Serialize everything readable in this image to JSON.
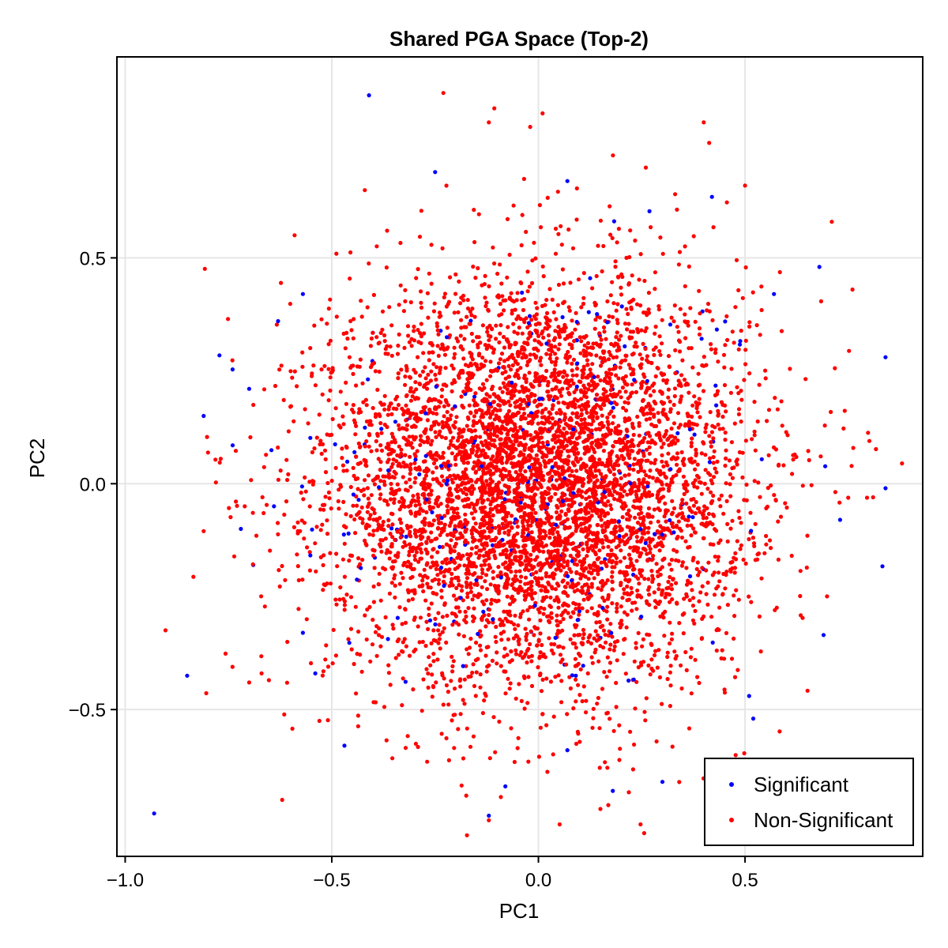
{
  "chart_data": {
    "type": "scatter",
    "title": "Shared PGA Space (Top-2)",
    "xlabel": "PC1",
    "ylabel": "PC2",
    "xlim": [
      -1.02,
      0.93
    ],
    "ylim": [
      -0.825,
      0.945
    ],
    "xticks": [
      -1.0,
      -0.5,
      0.0,
      0.5
    ],
    "xtick_labels": [
      "−1.0",
      "−0.5",
      "0.0",
      "0.5"
    ],
    "yticks": [
      -0.5,
      0.0,
      0.5
    ],
    "ytick_labels": [
      "−0.5",
      "0.0",
      "0.5"
    ],
    "grid": true,
    "legend_position": "bottom-right",
    "series": [
      {
        "name": "Significant",
        "color": "#0000ff",
        "count": 260,
        "distribution": {
          "center": [
            0.0,
            0.0
          ],
          "sd": [
            0.3,
            0.25
          ]
        },
        "points": [
          [
            -0.93,
            -0.73
          ],
          [
            -0.85,
            -0.425
          ],
          [
            -0.81,
            0.15
          ],
          [
            -0.74,
            0.085
          ],
          [
            -0.72,
            -0.1
          ],
          [
            -0.7,
            0.21
          ],
          [
            -0.69,
            -0.18
          ],
          [
            -0.63,
            0.36
          ],
          [
            -0.64,
            -0.05
          ],
          [
            -0.57,
            0.42
          ],
          [
            -0.57,
            -0.33
          ],
          [
            -0.54,
            -0.42
          ],
          [
            -0.41,
            0.86
          ],
          [
            -0.25,
            0.69
          ],
          [
            0.42,
            0.635
          ],
          [
            0.84,
            0.28
          ],
          [
            0.84,
            -0.01
          ],
          [
            0.73,
            -0.08
          ],
          [
            0.69,
            -0.335
          ],
          [
            0.51,
            -0.47
          ],
          [
            0.52,
            -0.52
          ],
          [
            0.3,
            -0.66
          ],
          [
            0.18,
            -0.68
          ],
          [
            -0.12,
            -0.735
          ],
          [
            0.07,
            0.67
          ],
          [
            -0.08,
            -0.67
          ],
          [
            0.07,
            -0.59
          ],
          [
            0.57,
            0.42
          ],
          [
            0.68,
            0.48
          ]
        ]
      },
      {
        "name": "Non-Significant",
        "color": "#ff0000",
        "count": 6000,
        "distribution": {
          "center": [
            0.0,
            0.0
          ],
          "sd": [
            0.25,
            0.22
          ]
        },
        "points": [
          [
            -0.23,
            0.865
          ],
          [
            0.01,
            0.82
          ],
          [
            0.4,
            0.8
          ],
          [
            -0.12,
            0.8
          ],
          [
            -0.02,
            0.79
          ],
          [
            0.26,
            0.7
          ],
          [
            -0.62,
            -0.7
          ],
          [
            -0.12,
            -0.745
          ],
          [
            -0.81,
            -0.105
          ],
          [
            -0.7,
            -0.44
          ],
          [
            -0.67,
            -0.42
          ],
          [
            0.88,
            0.045
          ],
          [
            0.81,
            -0.03
          ],
          [
            0.76,
            0.43
          ],
          [
            0.15,
            -0.72
          ],
          [
            0.5,
            0.66
          ],
          [
            -0.59,
            0.55
          ],
          [
            -0.42,
            0.65
          ],
          [
            -0.53,
            -0.525
          ],
          [
            0.71,
            0.58
          ]
        ]
      }
    ]
  }
}
